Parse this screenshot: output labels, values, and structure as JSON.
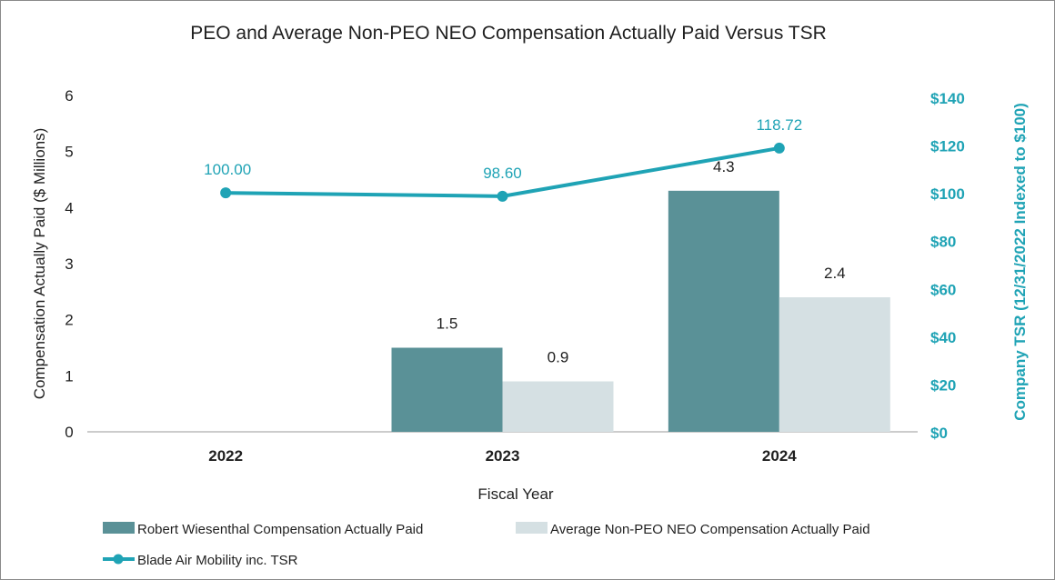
{
  "colors": {
    "peo_bar": "#5a9197",
    "neo_bar": "#d5e0e3",
    "tsr_line": "#1fa3b5",
    "axis": "#9a9a9a"
  },
  "chart_data": {
    "type": "bar",
    "title": "PEO and Average Non-PEO NEO Compensation Actually Paid Versus TSR",
    "xlabel": "Fiscal Year",
    "ylabel": "Compensation Actually Paid ($ Millions)",
    "y2label": "Company TSR (12/31/2022 Indexed to $100)",
    "categories": [
      "2022",
      "2023",
      "2024"
    ],
    "ylim": [
      0,
      6
    ],
    "yticks": [
      "0",
      "1",
      "2",
      "3",
      "4",
      "5",
      "6"
    ],
    "y2lim": [
      0,
      140
    ],
    "y2ticks": [
      "$0",
      "$20",
      "$40",
      "$60",
      "$80",
      "$100",
      "$120",
      "$140"
    ],
    "series": [
      {
        "name": "Robert Wiesenthal Compensation Actually Paid",
        "type": "bar",
        "axis": "left",
        "values": [
          null,
          1.5,
          4.3
        ],
        "labels": [
          "",
          "1.5",
          "4.3"
        ]
      },
      {
        "name": "Average Non-PEO NEO Compensation Actually Paid",
        "type": "bar",
        "axis": "left",
        "values": [
          null,
          0.9,
          2.4
        ],
        "labels": [
          "",
          "0.9",
          "2.4"
        ]
      },
      {
        "name": "Blade Air Mobility inc. TSR",
        "type": "line",
        "axis": "right",
        "values": [
          100.0,
          98.6,
          118.72
        ],
        "labels": [
          "100.00",
          "98.60",
          "118.72"
        ]
      }
    ],
    "legend": "bottom"
  }
}
